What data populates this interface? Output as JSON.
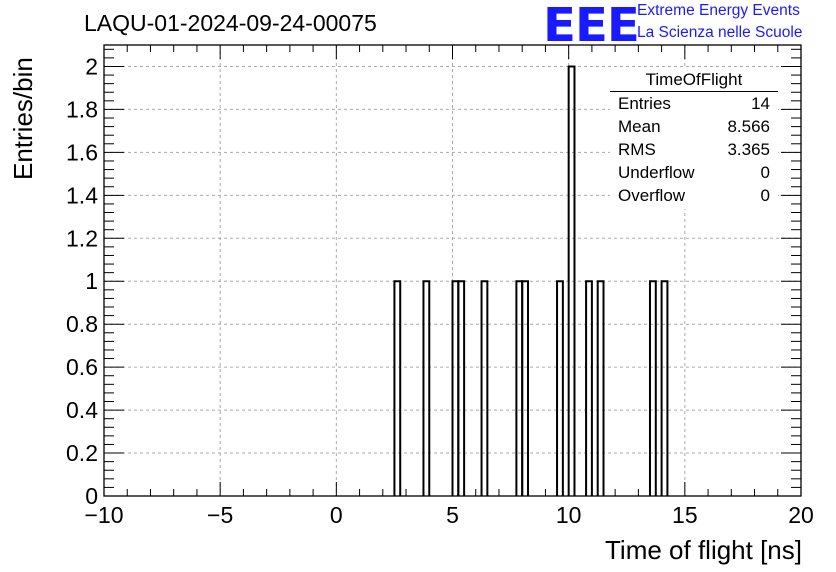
{
  "header": {
    "title": "LAQU-01-2024-09-24-00075",
    "logo_text": "EEE",
    "logo_line1": "Extreme Energy Events",
    "logo_line2": "La Scienza nelle Scuole"
  },
  "stats_box": {
    "title": "TimeOfFlight",
    "rows": [
      {
        "label": "Entries",
        "value": "14"
      },
      {
        "label": "Mean",
        "value": "8.566"
      },
      {
        "label": "RMS",
        "value": "3.365"
      },
      {
        "label": "Underflow",
        "value": "0"
      },
      {
        "label": "Overflow",
        "value": "0"
      }
    ]
  },
  "colors": {
    "logo": "#1a1aff",
    "line": "#000000",
    "grid": "#aaaaaa"
  },
  "chart_data": {
    "type": "bar",
    "style": "step-histogram",
    "xlabel": "Time of flight [ns]",
    "ylabel": "Entries/bin",
    "xlim": [
      -10,
      20
    ],
    "ylim": [
      0,
      2.1
    ],
    "grid": true,
    "legend": "top-right",
    "bin_width": 0.25,
    "xticks": [
      "−10",
      "−5",
      "0",
      "5",
      "10",
      "15",
      "20"
    ],
    "yticks": [
      "0",
      "0.2",
      "0.4",
      "0.6",
      "0.8",
      "1",
      "1.2",
      "1.4",
      "1.6",
      "1.8",
      "2"
    ],
    "bins": [
      {
        "x": 2.5,
        "value": 1
      },
      {
        "x": 3.75,
        "value": 1
      },
      {
        "x": 5.0,
        "value": 1
      },
      {
        "x": 5.25,
        "value": 1
      },
      {
        "x": 6.25,
        "value": 1
      },
      {
        "x": 7.75,
        "value": 1
      },
      {
        "x": 8.0,
        "value": 1
      },
      {
        "x": 9.5,
        "value": 1
      },
      {
        "x": 10.0,
        "value": 2
      },
      {
        "x": 10.75,
        "value": 1
      },
      {
        "x": 11.25,
        "value": 1
      },
      {
        "x": 13.5,
        "value": 1
      },
      {
        "x": 14.0,
        "value": 1
      }
    ]
  }
}
